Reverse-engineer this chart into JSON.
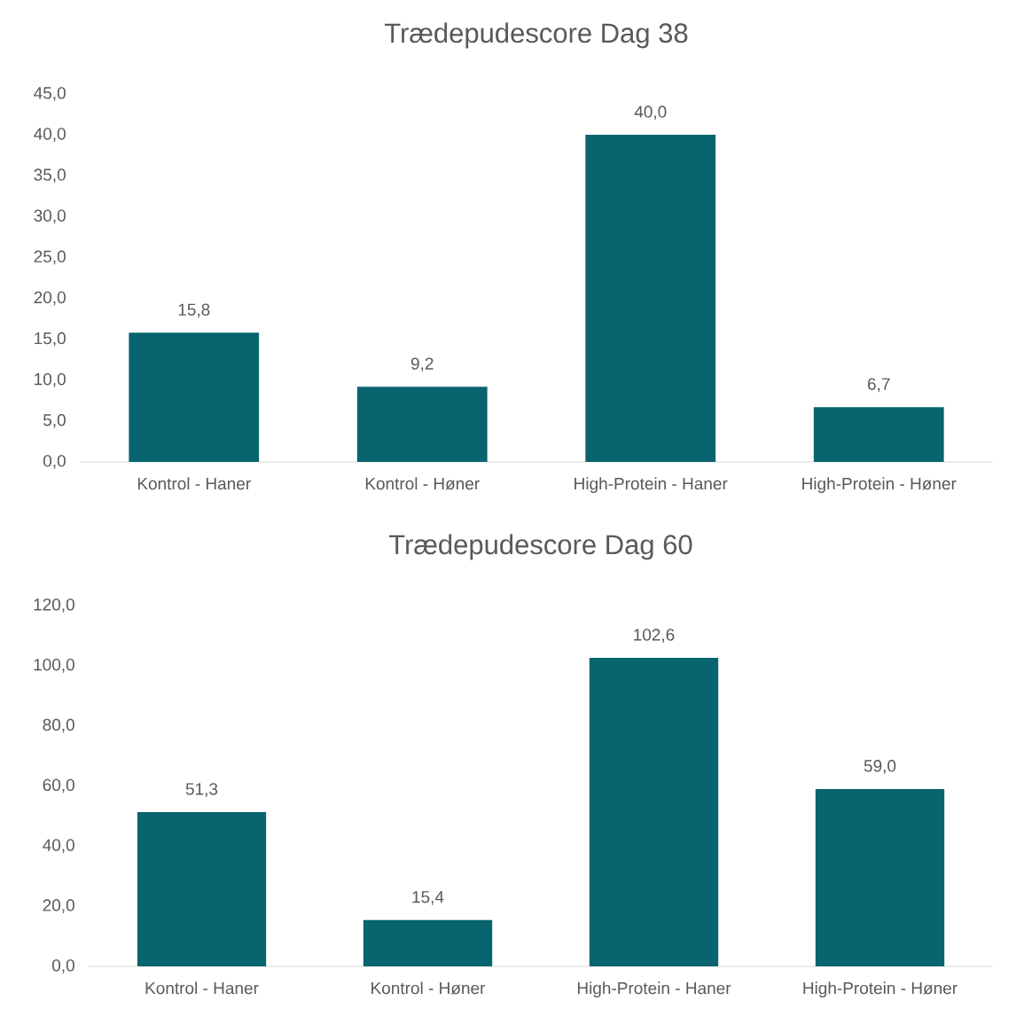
{
  "chart_data": [
    {
      "type": "bar",
      "title": "Trædepudescore Dag 38",
      "categories": [
        "Kontrol - Haner",
        "Kontrol - Høner",
        "High-Protein - Haner",
        "High-Protein - Høner"
      ],
      "values": [
        15.8,
        9.2,
        40.0,
        6.7
      ],
      "value_labels": [
        "15,8",
        "9,2",
        "40,0",
        "6,7"
      ],
      "color": "#08646f",
      "ylim": [
        0,
        45
      ],
      "yticks": [
        {
          "value": 0,
          "label": "0,0"
        },
        {
          "value": 5,
          "label": "5,0"
        },
        {
          "value": 10,
          "label": "10,0"
        },
        {
          "value": 15,
          "label": "15,0"
        },
        {
          "value": 20,
          "label": "20,0"
        },
        {
          "value": 25,
          "label": "25,0"
        },
        {
          "value": 30,
          "label": "30,0"
        },
        {
          "value": 35,
          "label": "35,0"
        },
        {
          "value": 40,
          "label": "40,0"
        },
        {
          "value": 45,
          "label": "45,0"
        }
      ]
    },
    {
      "type": "bar",
      "title": "Trædepudescore Dag 60",
      "categories": [
        "Kontrol - Haner",
        "Kontrol - Høner",
        "High-Protein - Haner",
        "High-Protein - Høner"
      ],
      "values": [
        51.3,
        15.4,
        102.6,
        59.0
      ],
      "value_labels": [
        "51,3",
        "15,4",
        "102,6",
        "59,0"
      ],
      "color": "#08646f",
      "ylim": [
        0,
        120
      ],
      "yticks": [
        {
          "value": 0,
          "label": "0,0"
        },
        {
          "value": 20,
          "label": "20,0"
        },
        {
          "value": 40,
          "label": "40,0"
        },
        {
          "value": 60,
          "label": "60,0"
        },
        {
          "value": 80,
          "label": "80,0"
        },
        {
          "value": 100,
          "label": "100,0"
        },
        {
          "value": 120,
          "label": "120,0"
        }
      ]
    }
  ]
}
